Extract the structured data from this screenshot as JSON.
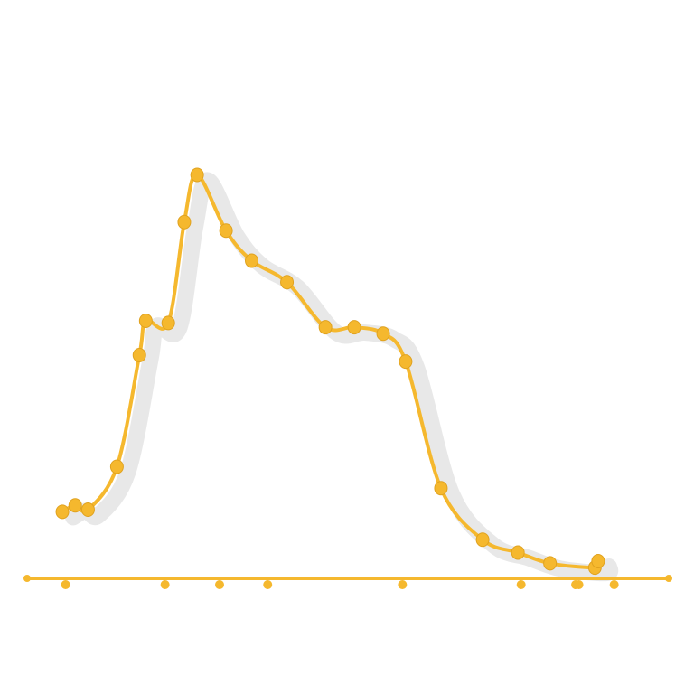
{
  "chart_data": {
    "type": "line",
    "title": "",
    "xlabel": "",
    "ylabel": "",
    "xlim": [
      0,
      100
    ],
    "ylim": [
      0,
      100
    ],
    "grid": false,
    "legend": "none",
    "series": [
      {
        "color": "#f5b82e",
        "shadow_color": "#bdbdbd",
        "x": [
          5.5,
          7.5,
          9.5,
          14.0,
          17.5,
          18.5,
          22.0,
          24.5,
          26.5,
          31.0,
          35.0,
          40.5,
          46.5,
          51.0,
          55.5,
          59.0,
          64.5,
          71.0,
          76.5,
          81.5,
          88.5,
          89.0
        ],
        "y": [
          15.5,
          17.0,
          16.0,
          26.0,
          52.0,
          60.0,
          59.5,
          83.0,
          94.0,
          81.0,
          74.0,
          69.0,
          58.5,
          58.5,
          57.0,
          50.5,
          21.0,
          9.0,
          6.0,
          3.5,
          2.5,
          4.0
        ]
      }
    ],
    "baseline": {
      "color": "#f5b82e",
      "y": 0,
      "x_start": 0,
      "x_end": 100,
      "tick_x": [
        6,
        21.5,
        30,
        37.5,
        58.5,
        77,
        85.5,
        86,
        91.5
      ]
    }
  }
}
